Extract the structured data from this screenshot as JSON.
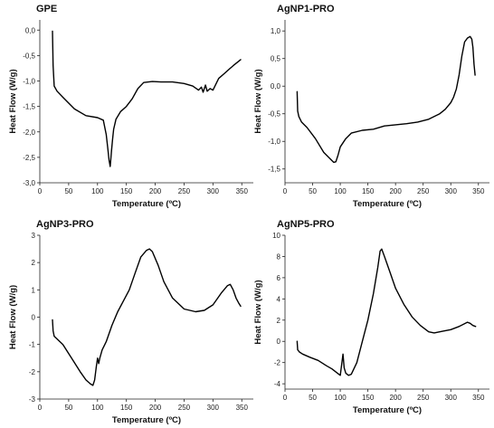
{
  "chart_data": [
    {
      "type": "line",
      "title": "GPE",
      "xlabel": "Temperature (ºC)",
      "ylabel": "Heat Flow (W/g)",
      "xlim": [
        0,
        370
      ],
      "ylim": [
        -3.0,
        0.2
      ],
      "xticks": [
        0,
        50,
        100,
        150,
        200,
        250,
        300,
        350
      ],
      "yticks": [
        0.0,
        -0.5,
        -1.0,
        -1.5,
        -2.0,
        -2.5,
        -3.0
      ],
      "ytick_labels": [
        "0,0",
        "-0,5",
        "-1,0",
        "-1,5",
        "-2,0",
        "-2,5",
        "-3,0"
      ],
      "series": [
        {
          "x": [
            22,
            23,
            25,
            30,
            40,
            60,
            80,
            100,
            110,
            115,
            118,
            120,
            122,
            124,
            126,
            128,
            132,
            140,
            150,
            160,
            170,
            180,
            195,
            210,
            230,
            250,
            265,
            275,
            280,
            283,
            287,
            290,
            295,
            300,
            310,
            320,
            335,
            348
          ],
          "y": [
            -0.02,
            -0.7,
            -1.1,
            -1.2,
            -1.32,
            -1.55,
            -1.68,
            -1.72,
            -1.77,
            -2.05,
            -2.35,
            -2.55,
            -2.68,
            -2.4,
            -2.15,
            -1.95,
            -1.75,
            -1.6,
            -1.5,
            -1.35,
            -1.15,
            -1.03,
            -1.01,
            -1.02,
            -1.02,
            -1.05,
            -1.1,
            -1.18,
            -1.12,
            -1.22,
            -1.08,
            -1.2,
            -1.15,
            -1.18,
            -0.95,
            -0.85,
            -0.7,
            -0.58
          ]
        }
      ]
    },
    {
      "type": "line",
      "title": "AgNP1-PRO",
      "xlabel": "Temperature (ºC)",
      "ylabel": "Heat Flow (W/g)",
      "xlim": [
        0,
        370
      ],
      "ylim": [
        -1.75,
        1.2
      ],
      "xticks": [
        0,
        50,
        100,
        150,
        200,
        250,
        300,
        350
      ],
      "yticks": [
        1.0,
        0.5,
        0.0,
        -0.5,
        -1.0,
        -1.5
      ],
      "ytick_labels": [
        "1,0",
        "0,5",
        "0,0",
        "-0,5",
        "-1,0",
        "-1,5"
      ],
      "series": [
        {
          "x": [
            22,
            23,
            25,
            30,
            40,
            55,
            70,
            80,
            88,
            92,
            96,
            100,
            110,
            120,
            140,
            160,
            180,
            200,
            220,
            240,
            260,
            280,
            290,
            300,
            305,
            310,
            315,
            320,
            325,
            330,
            335,
            338,
            340,
            342,
            344
          ],
          "y": [
            -0.1,
            -0.45,
            -0.55,
            -0.65,
            -0.75,
            -0.95,
            -1.2,
            -1.3,
            -1.38,
            -1.37,
            -1.25,
            -1.1,
            -0.95,
            -0.85,
            -0.8,
            -0.78,
            -0.72,
            -0.7,
            -0.68,
            -0.65,
            -0.6,
            -0.5,
            -0.42,
            -0.3,
            -0.2,
            -0.05,
            0.2,
            0.55,
            0.8,
            0.87,
            0.9,
            0.85,
            0.7,
            0.4,
            0.2
          ]
        }
      ]
    },
    {
      "type": "line",
      "title": "AgNP3-PRO",
      "xlabel": "Temperature (ºC)",
      "ylabel": "Heat Flow (W/g)",
      "xlim": [
        0,
        370
      ],
      "ylim": [
        -3.0,
        3.0
      ],
      "xticks": [
        0,
        50,
        100,
        150,
        200,
        250,
        300,
        350
      ],
      "yticks": [
        3,
        2,
        1,
        0,
        -1,
        -2,
        -3
      ],
      "ytick_labels": [
        "3",
        "2",
        "1",
        "0",
        "-1",
        "-2",
        "-3"
      ],
      "series": [
        {
          "x": [
            22,
            23,
            25,
            30,
            40,
            55,
            70,
            80,
            88,
            92,
            95,
            98,
            100,
            102,
            104,
            108,
            115,
            125,
            135,
            145,
            155,
            165,
            175,
            185,
            190,
            195,
            205,
            215,
            230,
            250,
            270,
            285,
            300,
            315,
            325,
            330,
            335,
            340,
            345,
            348
          ],
          "y": [
            -0.1,
            -0.5,
            -0.7,
            -0.8,
            -1.0,
            -1.5,
            -2.0,
            -2.3,
            -2.45,
            -2.5,
            -2.3,
            -1.8,
            -1.5,
            -1.7,
            -1.5,
            -1.2,
            -0.9,
            -0.3,
            0.2,
            0.6,
            1.0,
            1.6,
            2.2,
            2.45,
            2.5,
            2.4,
            1.9,
            1.3,
            0.7,
            0.3,
            0.2,
            0.25,
            0.45,
            0.9,
            1.15,
            1.2,
            1.0,
            0.7,
            0.5,
            0.4
          ]
        }
      ]
    },
    {
      "type": "line",
      "title": "AgNP5-PRO",
      "xlabel": "Temperature (ºC)",
      "ylabel": "Heat Flow (W/g)",
      "xlim": [
        0,
        370
      ],
      "ylim": [
        -4.5,
        10.0
      ],
      "xticks": [
        0,
        50,
        100,
        150,
        200,
        250,
        300,
        350
      ],
      "yticks": [
        10,
        8,
        6,
        4,
        2,
        0,
        -2,
        -4
      ],
      "ytick_labels": [
        "10",
        "8",
        "6",
        "4",
        "2",
        "0",
        "-2",
        "-4"
      ],
      "series": [
        {
          "x": [
            22,
            23,
            26,
            32,
            45,
            60,
            75,
            85,
            95,
            100,
            103,
            105,
            107,
            110,
            115,
            120,
            130,
            140,
            150,
            160,
            168,
            172,
            175,
            180,
            190,
            200,
            215,
            230,
            245,
            260,
            270,
            285,
            300,
            315,
            330,
            335,
            340,
            345
          ],
          "y": [
            0.0,
            -0.8,
            -1.0,
            -1.2,
            -1.5,
            -1.8,
            -2.3,
            -2.6,
            -3.0,
            -3.2,
            -2.0,
            -1.2,
            -2.5,
            -3.0,
            -3.2,
            -3.1,
            -2.0,
            0.0,
            2.0,
            4.5,
            7.0,
            8.5,
            8.7,
            8.0,
            6.5,
            5.0,
            3.5,
            2.3,
            1.5,
            0.9,
            0.8,
            0.95,
            1.1,
            1.4,
            1.8,
            1.7,
            1.5,
            1.4
          ]
        }
      ]
    }
  ]
}
